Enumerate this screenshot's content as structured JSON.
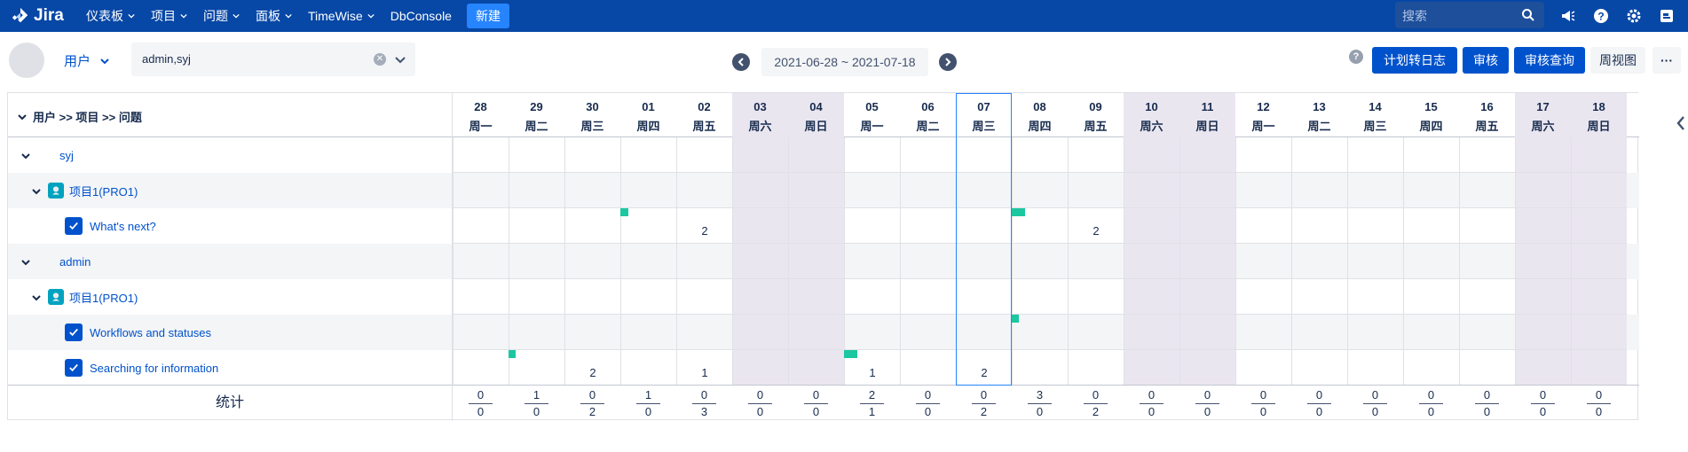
{
  "nav": {
    "logo_text": "Jira",
    "menu": [
      {
        "label": "仪表板",
        "has_dropdown": true
      },
      {
        "label": "项目",
        "has_dropdown": true
      },
      {
        "label": "问题",
        "has_dropdown": true
      },
      {
        "label": "面板",
        "has_dropdown": true
      },
      {
        "label": "TimeWise",
        "has_dropdown": true
      },
      {
        "label": "DbConsole",
        "has_dropdown": false
      }
    ],
    "create_label": "新建",
    "search_placeholder": "搜索"
  },
  "toolbar": {
    "user_dropdown_label": "用户",
    "user_select_value": "admin,syj",
    "date_range": "2021-06-28 ~ 2021-07-18",
    "help_icon_text": "?",
    "buttons": {
      "plan_to_log": "计划转日志",
      "review": "审核",
      "review_query": "审核查询",
      "week_view": "周视图",
      "more": "···"
    }
  },
  "grid": {
    "header_label": "用户 >> 项目 >> 问题",
    "days": [
      {
        "date": "28",
        "weekday": "周一",
        "weekend": false
      },
      {
        "date": "29",
        "weekday": "周二",
        "weekend": false
      },
      {
        "date": "30",
        "weekday": "周三",
        "weekend": false
      },
      {
        "date": "01",
        "weekday": "周四",
        "weekend": false
      },
      {
        "date": "02",
        "weekday": "周五",
        "weekend": false
      },
      {
        "date": "03",
        "weekday": "周六",
        "weekend": true
      },
      {
        "date": "04",
        "weekday": "周日",
        "weekend": true
      },
      {
        "date": "05",
        "weekday": "周一",
        "weekend": false
      },
      {
        "date": "06",
        "weekday": "周二",
        "weekend": false
      },
      {
        "date": "07",
        "weekday": "周三",
        "weekend": false,
        "today": true
      },
      {
        "date": "08",
        "weekday": "周四",
        "weekend": false
      },
      {
        "date": "09",
        "weekday": "周五",
        "weekend": false
      },
      {
        "date": "10",
        "weekday": "周六",
        "weekend": true
      },
      {
        "date": "11",
        "weekday": "周日",
        "weekend": true
      },
      {
        "date": "12",
        "weekday": "周一",
        "weekend": false
      },
      {
        "date": "13",
        "weekday": "周二",
        "weekend": false
      },
      {
        "date": "14",
        "weekday": "周三",
        "weekend": false
      },
      {
        "date": "15",
        "weekday": "周四",
        "weekend": false
      },
      {
        "date": "16",
        "weekday": "周五",
        "weekend": false
      },
      {
        "date": "17",
        "weekday": "周六",
        "weekend": true
      },
      {
        "date": "18",
        "weekday": "周日",
        "weekend": true
      }
    ],
    "rows": [
      {
        "type": "user",
        "label": "syj",
        "values": {},
        "marks": []
      },
      {
        "type": "project",
        "label": "项目1(PRO1)",
        "values": {},
        "marks": []
      },
      {
        "type": "issue",
        "label": "What's next?",
        "values": {
          "4": "2",
          "11": "2"
        },
        "marks": [
          {
            "day": 3,
            "frac": 0.3
          },
          {
            "day": 10,
            "frac": 0.5
          }
        ]
      },
      {
        "type": "user",
        "label": "admin",
        "values": {},
        "marks": []
      },
      {
        "type": "project",
        "label": "项目1(PRO1)",
        "values": {},
        "marks": []
      },
      {
        "type": "issue",
        "label": "Workflows and statuses",
        "values": {},
        "marks": [
          {
            "day": 10,
            "frac": 0.2
          }
        ]
      },
      {
        "type": "issue",
        "label": "Searching for information",
        "values": {
          "2": "2",
          "4": "1",
          "7": "1",
          "9": "2"
        },
        "marks": [
          {
            "day": 1,
            "frac": 0.2
          },
          {
            "day": 7,
            "frac": 0.5
          }
        ]
      }
    ],
    "totals_label": "统计",
    "totals": [
      {
        "top": "0",
        "bottom": "0"
      },
      {
        "top": "1",
        "bottom": "0"
      },
      {
        "top": "0",
        "bottom": "2"
      },
      {
        "top": "1",
        "bottom": "0"
      },
      {
        "top": "0",
        "bottom": "3"
      },
      {
        "top": "0",
        "bottom": "0"
      },
      {
        "top": "0",
        "bottom": "0"
      },
      {
        "top": "2",
        "bottom": "1"
      },
      {
        "top": "0",
        "bottom": "0"
      },
      {
        "top": "0",
        "bottom": "2"
      },
      {
        "top": "3",
        "bottom": "0"
      },
      {
        "top": "0",
        "bottom": "2"
      },
      {
        "top": "0",
        "bottom": "0"
      },
      {
        "top": "0",
        "bottom": "0"
      },
      {
        "top": "0",
        "bottom": "0"
      },
      {
        "top": "0",
        "bottom": "0"
      },
      {
        "top": "0",
        "bottom": "0"
      },
      {
        "top": "0",
        "bottom": "0"
      },
      {
        "top": "0",
        "bottom": "0"
      },
      {
        "top": "0",
        "bottom": "0"
      },
      {
        "top": "0",
        "bottom": "0"
      }
    ]
  },
  "colors": {
    "nav_bg": "#0747a6",
    "primary": "#0052cc",
    "weekend_bg": "#eae6f0",
    "mark": "#1bc7a0",
    "today_border": "#2684ff"
  }
}
